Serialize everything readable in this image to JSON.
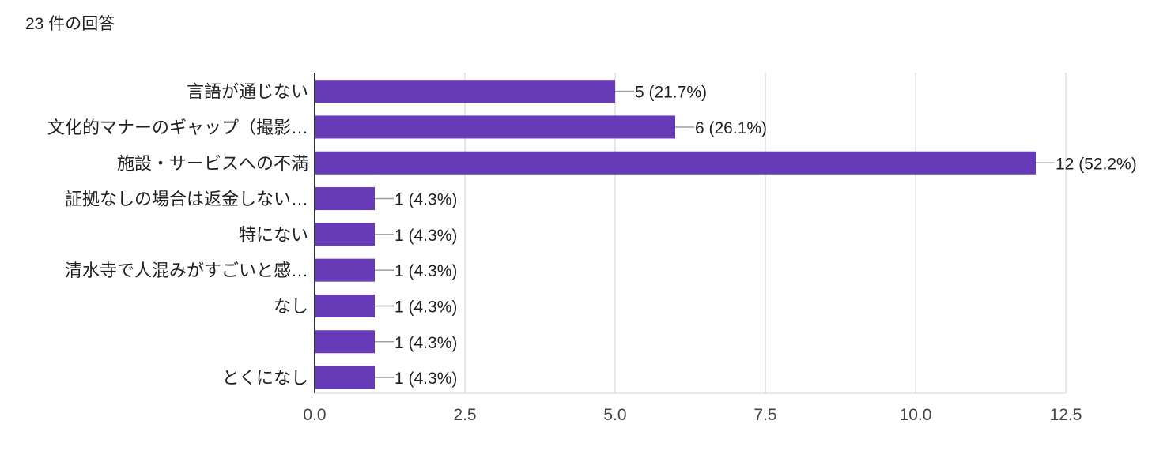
{
  "header": {
    "response_count": "23 件の回答"
  },
  "chart_data": {
    "type": "bar",
    "orientation": "horizontal",
    "title": "",
    "xlabel": "",
    "ylabel": "",
    "categories": [
      "言語が通じない",
      "文化的マナーのギャップ（撮影…",
      "施設・サービスへの不満",
      "証拠なしの場合は返金しない…",
      "特にない",
      "清水寺で人混みがすごいと感…",
      "なし",
      "",
      "とくになし"
    ],
    "values": [
      5,
      6,
      12,
      1,
      1,
      1,
      1,
      1,
      1
    ],
    "value_labels": [
      "5 (21.7%)",
      "6 (26.1%)",
      "12 (52.2%)",
      "1 (4.3%)",
      "1 (4.3%)",
      "1 (4.3%)",
      "1 (4.3%)",
      "1 (4.3%)",
      "1 (4.3%)"
    ],
    "xlim": [
      0,
      12.5
    ],
    "xticks": [
      0,
      2.5,
      5,
      7.5,
      10,
      12.5
    ],
    "xtick_labels": [
      "0.0",
      "2.5",
      "5.0",
      "7.5",
      "10.0",
      "12.5"
    ],
    "grid": true,
    "legend": "none",
    "colors": {
      "bar": "#673ab7",
      "grid": "#e0e0e0",
      "axis": "#333333",
      "leader": "#9e9e9e"
    }
  }
}
